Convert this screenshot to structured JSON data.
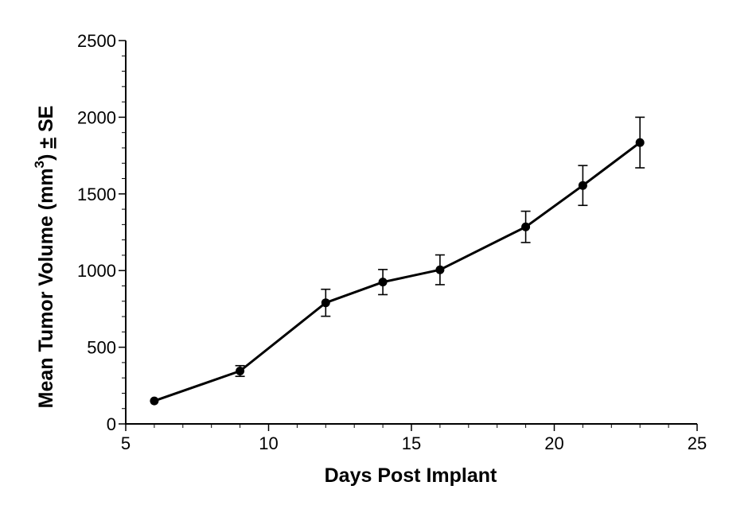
{
  "chart_data": {
    "type": "line",
    "xlabel": "Days Post Implant",
    "ylabel_main": "Mean Tumor Volume (mm",
    "ylabel_sup": "3",
    "ylabel_close": ") ",
    "ylabel_pm": "±",
    "ylabel_tail": " SE",
    "xlim": [
      5,
      25
    ],
    "ylim": [
      0,
      2500
    ],
    "xticks": [
      5,
      10,
      15,
      20,
      25
    ],
    "yticks": [
      0,
      500,
      1000,
      1500,
      2000,
      2500
    ],
    "xticks_minor": [
      6,
      7,
      8,
      9,
      11,
      12,
      13,
      14,
      16,
      17,
      18,
      19,
      21,
      22,
      23,
      24
    ],
    "yticks_minor": [
      100,
      200,
      300,
      400,
      600,
      700,
      800,
      900,
      1100,
      1200,
      1300,
      1400,
      1600,
      1700,
      1800,
      1900,
      2100,
      2200,
      2300,
      2400
    ],
    "grid": false,
    "series": [
      {
        "x": [
          6,
          9,
          12,
          14,
          16,
          19,
          21,
          23
        ],
        "y": [
          150,
          345,
          790,
          925,
          1005,
          1285,
          1555,
          1835
        ],
        "error": [
          0,
          35,
          88,
          82,
          97,
          102,
          130,
          165
        ],
        "color": "#000000"
      }
    ]
  }
}
